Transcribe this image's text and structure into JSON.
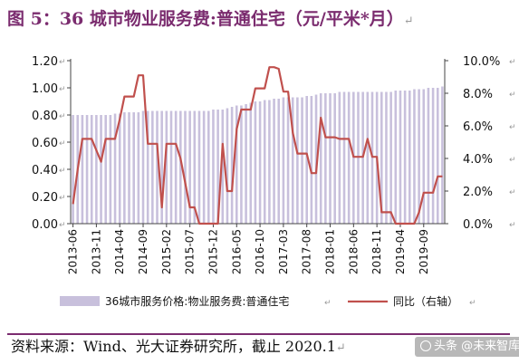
{
  "figure": {
    "title": "图 5：36 城市物业服务费:普通住宅（元/平米*月）",
    "return_mark": "↵"
  },
  "source_text": "资料来源：Wind、光大证券研究所，截止 2020.1",
  "watermark": "头条 @未来智库",
  "colors": {
    "bar": "#c8c0dc",
    "line": "#c0504d",
    "title": "#7b2c6f"
  },
  "chart_data": {
    "type": "bar+line",
    "categories": [
      "2013-06",
      "2013-07",
      "2013-08",
      "2013-09",
      "2013-10",
      "2013-11",
      "2013-12",
      "2014-01",
      "2014-02",
      "2014-03",
      "2014-04",
      "2014-05",
      "2014-06",
      "2014-07",
      "2014-08",
      "2014-09",
      "2014-10",
      "2014-11",
      "2014-12",
      "2015-01",
      "2015-02",
      "2015-03",
      "2015-04",
      "2015-05",
      "2015-06",
      "2015-07",
      "2015-08",
      "2015-09",
      "2015-10",
      "2015-11",
      "2015-12",
      "2016-01",
      "2016-02",
      "2016-03",
      "2016-04",
      "2016-05",
      "2016-06",
      "2016-07",
      "2016-08",
      "2016-09",
      "2016-10",
      "2016-11",
      "2016-12",
      "2017-01",
      "2017-02",
      "2017-03",
      "2017-04",
      "2017-05",
      "2017-06",
      "2017-07",
      "2017-08",
      "2017-09",
      "2017-10",
      "2017-11",
      "2017-12",
      "2018-01",
      "2018-02",
      "2018-03",
      "2018-04",
      "2018-05",
      "2018-06",
      "2018-07",
      "2018-08",
      "2018-09",
      "2018-10",
      "2018-11",
      "2018-12",
      "2019-01",
      "2019-02",
      "2019-03",
      "2019-04",
      "2019-05",
      "2019-06",
      "2019-07",
      "2019-08",
      "2019-09",
      "2019-10",
      "2019-11",
      "2019-12",
      "2020-01"
    ],
    "xticks": [
      "2013-06",
      "2013-11",
      "2014-04",
      "2014-09",
      "2015-02",
      "2015-07",
      "2015-12",
      "2016-05",
      "2016-10",
      "2017-03",
      "2017-08",
      "2018-01",
      "2018-06",
      "2018-11",
      "2019-04",
      "2019-09"
    ],
    "series": [
      {
        "name": "36城市服务价格:物业服务费:普通住宅",
        "axis": "left",
        "kind": "bar",
        "values": [
          0.8,
          0.8,
          0.8,
          0.8,
          0.8,
          0.8,
          0.8,
          0.8,
          0.8,
          0.81,
          0.81,
          0.82,
          0.82,
          0.82,
          0.82,
          0.83,
          0.83,
          0.83,
          0.83,
          0.83,
          0.83,
          0.83,
          0.83,
          0.83,
          0.83,
          0.83,
          0.83,
          0.83,
          0.83,
          0.83,
          0.84,
          0.84,
          0.84,
          0.85,
          0.86,
          0.87,
          0.87,
          0.88,
          0.89,
          0.9,
          0.9,
          0.91,
          0.91,
          0.92,
          0.92,
          0.93,
          0.93,
          0.93,
          0.93,
          0.93,
          0.94,
          0.94,
          0.95,
          0.96,
          0.96,
          0.96,
          0.96,
          0.97,
          0.97,
          0.97,
          0.97,
          0.97,
          0.97,
          0.97,
          0.97,
          0.97,
          0.97,
          0.97,
          0.97,
          0.98,
          0.98,
          0.98,
          0.98,
          0.99,
          0.99,
          0.99,
          1.0,
          1.0,
          1.0,
          1.01
        ]
      },
      {
        "name": "同比（右轴）",
        "axis": "right",
        "kind": "line",
        "values": [
          1.2,
          3.3,
          5.2,
          5.2,
          5.2,
          4.5,
          3.8,
          5.2,
          5.2,
          5.2,
          6.4,
          7.8,
          7.8,
          7.8,
          9.1,
          9.1,
          4.9,
          4.9,
          4.9,
          1.0,
          4.9,
          4.9,
          4.9,
          4.0,
          2.5,
          1.0,
          1.0,
          0.0,
          0.0,
          0.0,
          0.0,
          0.0,
          4.9,
          2.0,
          2.0,
          5.8,
          7.0,
          7.0,
          7.0,
          8.3,
          8.3,
          8.3,
          9.6,
          9.6,
          9.5,
          8.1,
          8.1,
          5.6,
          4.3,
          4.3,
          4.3,
          3.1,
          3.1,
          6.5,
          5.3,
          5.3,
          5.3,
          5.2,
          5.2,
          5.2,
          4.1,
          4.1,
          4.1,
          5.2,
          4.1,
          4.1,
          0.7,
          0.7,
          0.7,
          0.0,
          0.0,
          0.0,
          0.0,
          0.0,
          0.7,
          1.9,
          1.9,
          1.9,
          2.9,
          2.9
        ]
      }
    ],
    "ylim_left": [
      0.0,
      1.2
    ],
    "yticks_left": [
      "0.00",
      "0.20",
      "0.40",
      "0.60",
      "0.80",
      "1.00",
      "1.20"
    ],
    "ylim_right": [
      0.0,
      10.0
    ],
    "yticks_right": [
      "0.0%",
      "2.0%",
      "4.0%",
      "6.0%",
      "8.0%",
      "10.0%"
    ],
    "legend": [
      "36城市服务价格:物业服务费:普通住宅",
      "同比（右轴）"
    ],
    "legend_position": "bottom",
    "grid": false
  }
}
